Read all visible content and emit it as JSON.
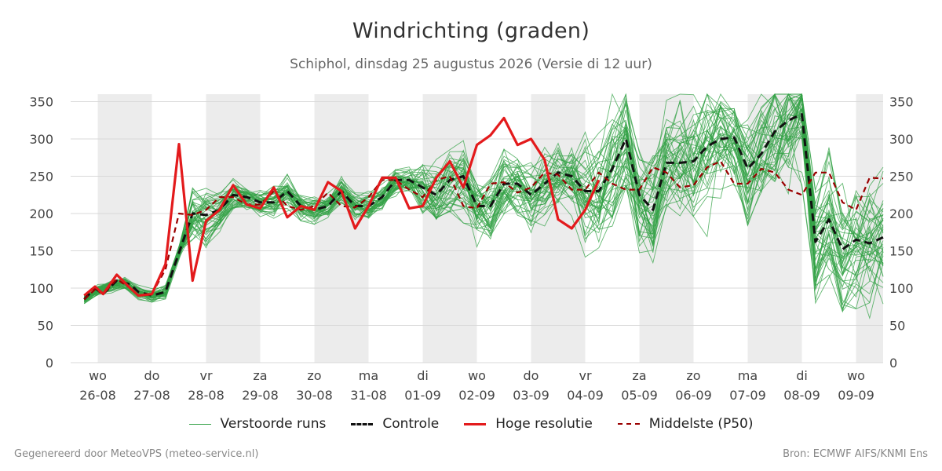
{
  "title": "Windrichting (graden)",
  "subtitle": "Schiphol, dinsdag 25 augustus 2026 (Versie di 12 uur)",
  "footer_left": "Gegenereerd door MeteoVPS (meteo-service.nl)",
  "footer_right": "Bron: ECMWF AIFS/KNMI Ens",
  "legend": {
    "ensemble": "Verstoorde runs",
    "control": "Controle",
    "hres": "Hoge resolutie",
    "p50": "Middelste (P50)"
  },
  "colors": {
    "ensemble": "#33a146",
    "control": "#111111",
    "hres": "#e31a1c",
    "p50": "#9a0000",
    "night_band": "#ececec",
    "grid": "#d9d9d9"
  },
  "chart_data": {
    "type": "line",
    "title": "Windrichting (graden)",
    "xlabel": "",
    "ylabel": "",
    "ylim": [
      0,
      360
    ],
    "yticks": [
      0,
      50,
      100,
      150,
      200,
      250,
      300,
      350
    ],
    "y_axis_both_sides": true,
    "grid": true,
    "legend_position": "bottom",
    "x_unit": "days from 26-08 00:00",
    "x_range": [
      0,
      14.5
    ],
    "day_ticks": [
      {
        "x": 0,
        "weekday": "wo",
        "date": "26-08"
      },
      {
        "x": 1,
        "weekday": "do",
        "date": "27-08"
      },
      {
        "x": 2,
        "weekday": "vr",
        "date": "28-08"
      },
      {
        "x": 3,
        "weekday": "za",
        "date": "29-08"
      },
      {
        "x": 4,
        "weekday": "zo",
        "date": "30-08"
      },
      {
        "x": 5,
        "weekday": "ma",
        "date": "31-08"
      },
      {
        "x": 6,
        "weekday": "di",
        "date": "01-09"
      },
      {
        "x": 7,
        "weekday": "wo",
        "date": "02-09"
      },
      {
        "x": 8,
        "weekday": "do",
        "date": "03-09"
      },
      {
        "x": 9,
        "weekday": "vr",
        "date": "04-09"
      },
      {
        "x": 10,
        "weekday": "za",
        "date": "05-09"
      },
      {
        "x": 11,
        "weekday": "zo",
        "date": "06-09"
      },
      {
        "x": 12,
        "weekday": "ma",
        "date": "07-09"
      },
      {
        "x": 13,
        "weekday": "di",
        "date": "08-09"
      },
      {
        "x": 14,
        "weekday": "wo",
        "date": "09-09"
      }
    ],
    "shaded_bands": [
      [
        0,
        1
      ],
      [
        2,
        3
      ],
      [
        4,
        5
      ],
      [
        6,
        7
      ],
      [
        8,
        9
      ],
      [
        10,
        11
      ],
      [
        12,
        13
      ],
      [
        14,
        14.5
      ]
    ],
    "series": [
      {
        "name": "Controle",
        "style": "dashed",
        "x": [
          -0.25,
          -0.05,
          0.1,
          0.35,
          0.6,
          0.75,
          1.0,
          1.25,
          1.75,
          2.0,
          2.25,
          2.5,
          2.75,
          3.0,
          3.25,
          3.5,
          3.75,
          4.0,
          4.25,
          4.5,
          4.75,
          5.0,
          5.25,
          5.5,
          5.75,
          6.0,
          6.25,
          6.5,
          6.75,
          7.0,
          7.25,
          7.5,
          7.75,
          8.0,
          8.25,
          8.5,
          8.75,
          9.0,
          9.25,
          9.5,
          9.75,
          10.0,
          10.25,
          10.5,
          10.75,
          11.0,
          11.25,
          11.5,
          11.75,
          12.0,
          12.25,
          12.5,
          12.75,
          13.0,
          13.25,
          13.5,
          13.75,
          14.0,
          14.25,
          14.5
        ],
        "values": [
          85,
          100,
          92,
          110,
          105,
          95,
          90,
          95,
          200,
          198,
          205,
          225,
          222,
          215,
          215,
          230,
          210,
          205,
          210,
          230,
          210,
          210,
          222,
          245,
          245,
          235,
          225,
          245,
          250,
          210,
          210,
          240,
          240,
          225,
          240,
          255,
          250,
          230,
          230,
          260,
          300,
          225,
          205,
          268,
          268,
          270,
          290,
          300,
          302,
          260,
          280,
          310,
          325,
          333,
          162,
          192,
          152,
          165,
          160,
          168
        ]
      },
      {
        "name": "Hoge resolutie",
        "style": "solid",
        "x": [
          -0.25,
          -0.05,
          0.1,
          0.35,
          0.6,
          0.75,
          1.0,
          1.25,
          1.5,
          1.75,
          2.0,
          2.25,
          2.5,
          2.75,
          3.0,
          3.25,
          3.5,
          3.75,
          4.0,
          4.25,
          4.5,
          4.75,
          5.0,
          5.25,
          5.5,
          5.75,
          6.0,
          6.25,
          6.5,
          6.75,
          7.0,
          7.25,
          7.5,
          7.75,
          8.0,
          8.25,
          8.5,
          8.75,
          9.0,
          9.25
        ],
        "values": [
          90,
          102,
          92,
          118,
          100,
          90,
          92,
          132,
          293,
          110,
          190,
          205,
          238,
          212,
          207,
          235,
          195,
          210,
          205,
          242,
          230,
          180,
          210,
          248,
          248,
          207,
          210,
          248,
          270,
          235,
          292,
          305,
          328,
          292,
          300,
          272,
          192,
          180,
          205,
          245
        ]
      },
      {
        "name": "Middelste (P50)",
        "style": "dashed",
        "x": [
          -0.25,
          -0.05,
          0.1,
          0.35,
          0.6,
          0.75,
          1.0,
          1.25,
          1.5,
          1.75,
          2.0,
          2.25,
          2.5,
          2.75,
          3.0,
          3.25,
          3.5,
          3.75,
          4.0,
          4.25,
          4.5,
          4.75,
          5.0,
          5.25,
          5.5,
          5.75,
          6.0,
          6.25,
          6.5,
          6.75,
          7.0,
          7.25,
          7.5,
          7.75,
          8.0,
          8.25,
          8.5,
          8.75,
          9.0,
          9.25,
          9.5,
          9.75,
          10.0,
          10.25,
          10.5,
          10.75,
          11.0,
          11.25,
          11.5,
          11.75,
          12.0,
          12.25,
          12.5,
          12.75,
          13.0,
          13.25,
          13.5,
          13.75,
          14.0,
          14.25,
          14.5
        ],
        "values": [
          85,
          98,
          92,
          112,
          100,
          90,
          92,
          125,
          200,
          198,
          205,
          222,
          222,
          212,
          212,
          230,
          210,
          205,
          210,
          228,
          210,
          208,
          222,
          245,
          245,
          232,
          222,
          245,
          250,
          210,
          207,
          240,
          242,
          228,
          235,
          255,
          252,
          232,
          232,
          255,
          240,
          232,
          232,
          262,
          255,
          235,
          238,
          262,
          270,
          240,
          240,
          260,
          255,
          232,
          225,
          255,
          255,
          215,
          205,
          248,
          247
        ]
      }
    ]
  }
}
